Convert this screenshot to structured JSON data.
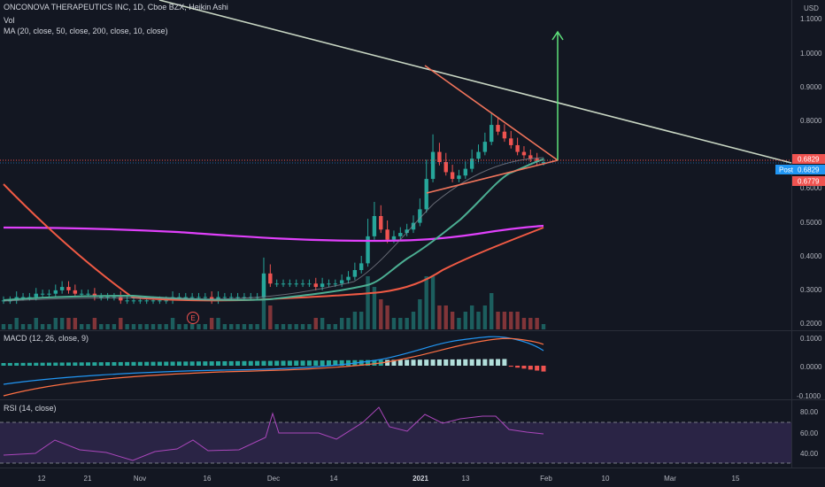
{
  "header": {
    "symbol_line": "ONCONOVA THERAPEUTICS INC, 1D, Cboe BZX, Heikin Ashi",
    "vol_label": "Vol",
    "ma_label": "MA (20, close, 50, close, 200, close, 10, close)",
    "currency": "USD"
  },
  "price_axis": {
    "ticks": [
      "1.1000",
      "1.0000",
      "0.9000",
      "0.8000",
      "0.7000",
      "0.6000",
      "0.5000",
      "0.4000",
      "0.3000",
      "0.2000"
    ],
    "last_price": "0.6829",
    "post_label": "Post",
    "post_price": "0.6829",
    "low_price": "0.6779",
    "colors": {
      "up": "#26a69a",
      "down": "#ef5350",
      "post": "#2196f3"
    }
  },
  "macd": {
    "label": "MACD (12, 26, close, 9)",
    "ticks": [
      "0.1000",
      "0.0000",
      "-0.1000"
    ]
  },
  "rsi": {
    "label": "RSI (14, close)",
    "ticks": [
      "80.00",
      "60.00",
      "40.00"
    ]
  },
  "time_axis": {
    "ticks": [
      "12",
      "21",
      "Nov",
      "16",
      "Dec",
      "14",
      "2021",
      "13",
      "Feb",
      "10",
      "Mar",
      "15"
    ]
  },
  "earnings_marker": "E",
  "chart_data": {
    "type": "candlestick",
    "style": "Heikin Ashi",
    "ylim": [
      0.18,
      1.16
    ],
    "log_scale": false,
    "candles_close_approx": [
      0.27,
      0.27,
      0.28,
      0.28,
      0.28,
      0.29,
      0.29,
      0.29,
      0.3,
      0.31,
      0.3,
      0.29,
      0.29,
      0.29,
      0.28,
      0.28,
      0.28,
      0.28,
      0.27,
      0.27,
      0.27,
      0.27,
      0.27,
      0.27,
      0.27,
      0.27,
      0.28,
      0.28,
      0.28,
      0.28,
      0.28,
      0.28,
      0.27,
      0.28,
      0.28,
      0.28,
      0.28,
      0.28,
      0.28,
      0.28,
      0.35,
      0.32,
      0.32,
      0.32,
      0.32,
      0.32,
      0.32,
      0.32,
      0.31,
      0.32,
      0.32,
      0.32,
      0.33,
      0.34,
      0.36,
      0.38,
      0.46,
      0.52,
      0.48,
      0.45,
      0.46,
      0.47,
      0.48,
      0.5,
      0.54,
      0.63,
      0.71,
      0.68,
      0.65,
      0.63,
      0.64,
      0.66,
      0.69,
      0.71,
      0.74,
      0.79,
      0.77,
      0.75,
      0.73,
      0.71,
      0.7,
      0.69,
      0.68,
      0.68
    ],
    "ma_lines": [
      {
        "name": "MA 20",
        "color": "#4caf93"
      },
      {
        "name": "MA 50",
        "color": "#f05a44"
      },
      {
        "name": "MA 200",
        "color": "#e040fb"
      }
    ],
    "annotations": [
      "downtrend line",
      "symmetrical triangle",
      "breakout target arrow"
    ]
  }
}
